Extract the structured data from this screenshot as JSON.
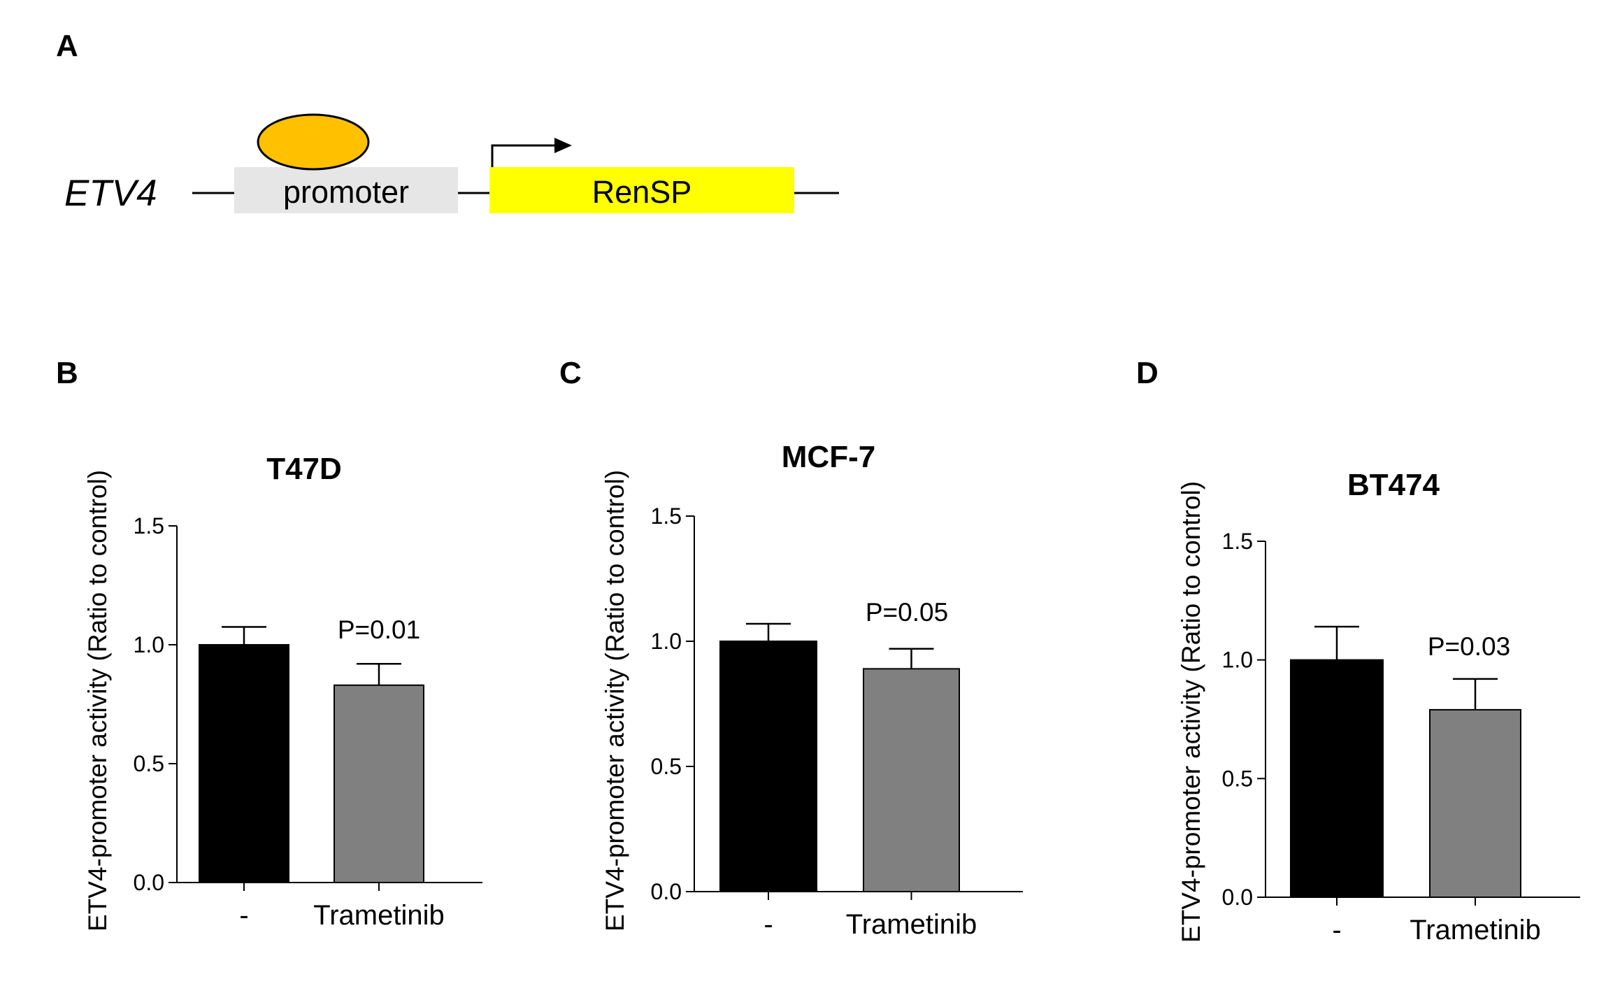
{
  "panels": {
    "a": "A",
    "b": "B",
    "c": "C",
    "d": "D"
  },
  "diagram": {
    "gene": "ETV4",
    "promoter_label": "promoter",
    "reporter_label": "RenSP",
    "colors": {
      "promoter_box": "#e6e6e6",
      "reporter_box": "#ffff00",
      "factor": "#ffc000"
    }
  },
  "chart_data": [
    {
      "type": "bar",
      "title": "T47D",
      "ylabel": "ETV4-promoter activity (Ratio to control)",
      "xlabel": "",
      "ylim": [
        0,
        1.5
      ],
      "yticks": [
        "0.0",
        "0.5",
        "1.0",
        "1.5"
      ],
      "categories": [
        "-",
        "Trametinib"
      ],
      "values": [
        1.0,
        0.83
      ],
      "errors": [
        0.075,
        0.09
      ],
      "colors": [
        "#000000",
        "#808080"
      ],
      "annotation": "P=0.01"
    },
    {
      "type": "bar",
      "title": "MCF-7",
      "ylabel": "ETV4-promoter activity (Ratio to control)",
      "xlabel": "",
      "ylim": [
        0,
        1.5
      ],
      "yticks": [
        "0.0",
        "0.5",
        "1.0",
        "1.5"
      ],
      "categories": [
        "-",
        "Trametinib"
      ],
      "values": [
        1.0,
        0.89
      ],
      "errors": [
        0.07,
        0.08
      ],
      "colors": [
        "#000000",
        "#808080"
      ],
      "annotation": "P=0.05"
    },
    {
      "type": "bar",
      "title": "BT474",
      "ylabel": "ETV4-promoter activity (Ratio to control)",
      "xlabel": "",
      "ylim": [
        0,
        1.5
      ],
      "yticks": [
        "0.0",
        "0.5",
        "1.0",
        "1.5"
      ],
      "categories": [
        "-",
        "Trametinib"
      ],
      "values": [
        1.0,
        0.79
      ],
      "errors": [
        0.14,
        0.13
      ],
      "colors": [
        "#000000",
        "#808080"
      ],
      "annotation": "P=0.03"
    }
  ]
}
